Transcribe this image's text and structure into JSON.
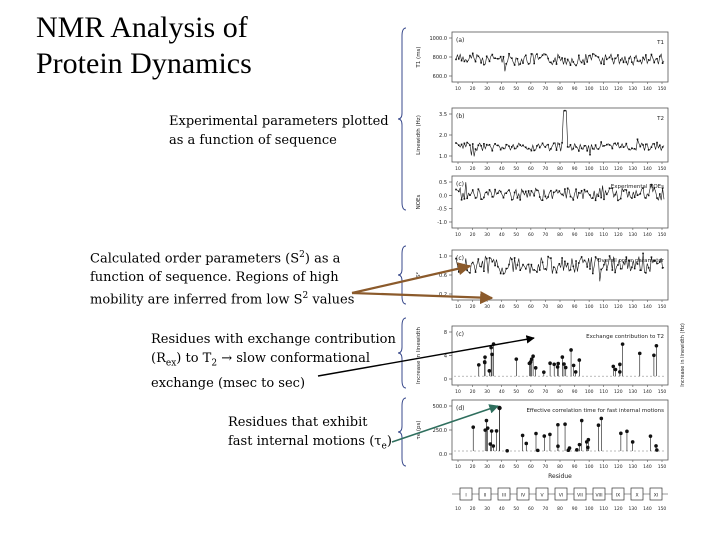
{
  "slide": {
    "title_line1": "NMR Analysis of",
    "title_line2": "Protein Dynamics"
  },
  "captions": {
    "experimental": {
      "line1": "Experimental parameters plotted",
      "line2": "as a function of sequence"
    },
    "order": {
      "line1_pre": "Calculated order parameters (S",
      "line1_sup": "2",
      "line1_post": ") as a",
      "line2": "function of sequence. Regions of high",
      "line3_pre": "mobility are inferred from low S",
      "line3_sup": "2",
      "line3_post": " values"
    },
    "exchange": {
      "line1": "Residues with exchange contribution",
      "line2_a": "(R",
      "line2_sub1": "ex",
      "line2_b": ") to T",
      "line2_sub2": "2",
      "line2_arrow": " → ",
      "line2_c": "slow conformational",
      "line3": "exchange (msec to sec)"
    },
    "fast": {
      "line1": "Residues that exhibit",
      "line2_a": "fast internal motions (",
      "line2_tau": "τ",
      "line2_sub": "e",
      "line2_b": ")"
    }
  },
  "figure": {
    "panels": [
      {
        "letter": "(a)",
        "ylabel": "T1 (ms)",
        "label": "T1",
        "ticks": [
          "1000.0",
          "800.0",
          "600.0"
        ]
      },
      {
        "letter": "(b)",
        "ylabel": "Linewidth (Hz)",
        "label": "T2",
        "ticks": [
          "3.5",
          "2.0",
          "1.0"
        ]
      },
      {
        "letter": "(c)",
        "ylabel": "NOEs",
        "label": "Experimental NOEs",
        "ticks": [
          "0.5",
          "0.0",
          "-0.5",
          "-1.0"
        ]
      },
      {
        "letter": "(c)",
        "ylabel": "S²",
        "label": "Overall order parameter",
        "ticks": [
          "1.0",
          "0.6",
          "0.2"
        ]
      },
      {
        "letter": "(c)",
        "ylabel": "Increase in linewidth",
        "label": "Exchange contribution to T2",
        "ticks": [
          "8",
          "4",
          "0"
        ]
      },
      {
        "letter": "(d)",
        "ylabel": "τe (ps)",
        "label": "Effective correlation time for fast internal motions",
        "ticks": [
          "500.0",
          "250.0",
          "0.0"
        ]
      }
    ],
    "x_ticks": [
      "10",
      "20",
      "30",
      "40",
      "50",
      "60",
      "70",
      "80",
      "90",
      "100",
      "110",
      "120",
      "130",
      "140",
      "150"
    ],
    "x_label": "Residue",
    "side_label": "Increase in linewidth (Hz)",
    "strand_labels": [
      "I",
      "II",
      "III",
      "IV",
      "V",
      "VI",
      "VII",
      "VIII",
      "IX",
      "X",
      "XI"
    ]
  },
  "colors": {
    "arrow_brown": "#8b5a2b",
    "arrow_teal": "#2f6f5e",
    "bracket": "#3a4a8c"
  }
}
